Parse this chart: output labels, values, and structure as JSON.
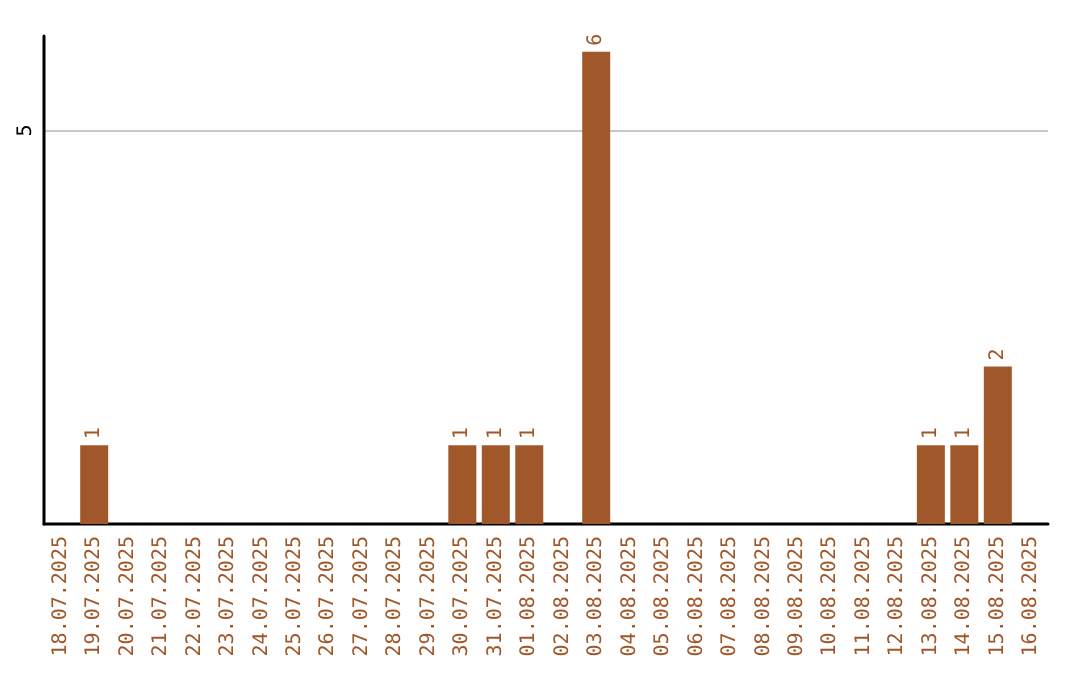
{
  "chart_data": {
    "type": "bar",
    "categories": [
      "18.07.2025",
      "19.07.2025",
      "20.07.2025",
      "21.07.2025",
      "22.07.2025",
      "23.07.2025",
      "24.07.2025",
      "25.07.2025",
      "26.07.2025",
      "27.07.2025",
      "28.07.2025",
      "29.07.2025",
      "30.07.2025",
      "31.07.2025",
      "01.08.2025",
      "02.08.2025",
      "03.08.2025",
      "04.08.2025",
      "05.08.2025",
      "06.08.2025",
      "07.08.2025",
      "08.08.2025",
      "09.08.2025",
      "10.08.2025",
      "11.08.2025",
      "12.08.2025",
      "13.08.2025",
      "14.08.2025",
      "15.08.2025",
      "16.08.2025"
    ],
    "values": [
      0,
      1,
      0,
      0,
      0,
      0,
      0,
      0,
      0,
      0,
      0,
      0,
      1,
      1,
      1,
      0,
      6,
      0,
      0,
      0,
      0,
      0,
      0,
      0,
      0,
      0,
      1,
      1,
      2,
      0
    ],
    "value_labels": [
      null,
      "1",
      null,
      null,
      null,
      null,
      null,
      null,
      null,
      null,
      null,
      null,
      "1",
      "1",
      "1",
      null,
      "6",
      null,
      null,
      null,
      null,
      null,
      null,
      null,
      null,
      null,
      "1",
      "1",
      "2",
      null
    ],
    "color": "#a0572a",
    "ylim": [
      0,
      6.2
    ],
    "yticks": [
      5
    ],
    "grid": "y"
  }
}
